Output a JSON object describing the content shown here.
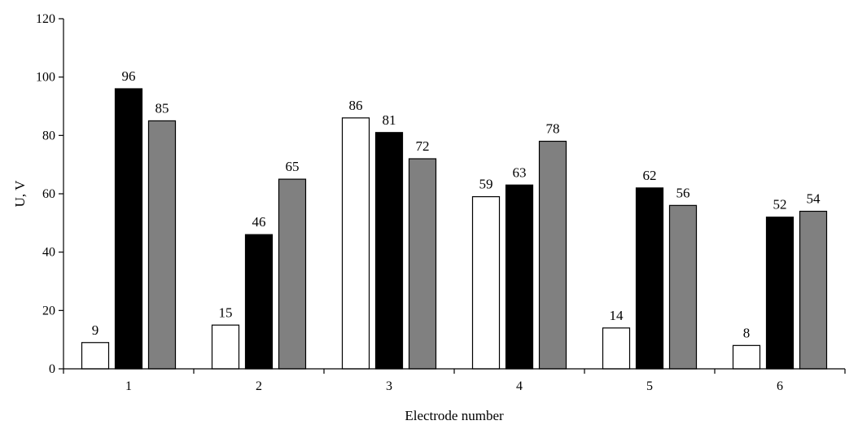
{
  "chart_data": {
    "type": "bar",
    "title": "",
    "xlabel": "Electrode number",
    "ylabel": "U, V",
    "ylim": [
      0,
      120
    ],
    "yticks": [
      0,
      20,
      40,
      60,
      80,
      100,
      120
    ],
    "grid": false,
    "legend": "none",
    "categories": [
      "1",
      "2",
      "3",
      "4",
      "5",
      "6"
    ],
    "series": [
      {
        "values": [
          9,
          15,
          86,
          59,
          14,
          8
        ],
        "color": "#ffffff",
        "border": "#000000"
      },
      {
        "values": [
          96,
          46,
          81,
          63,
          62,
          52
        ],
        "color": "#000000",
        "border": "#000000"
      },
      {
        "values": [
          85,
          65,
          72,
          78,
          56,
          54
        ],
        "color": "#808080",
        "border": "#000000"
      }
    ]
  }
}
